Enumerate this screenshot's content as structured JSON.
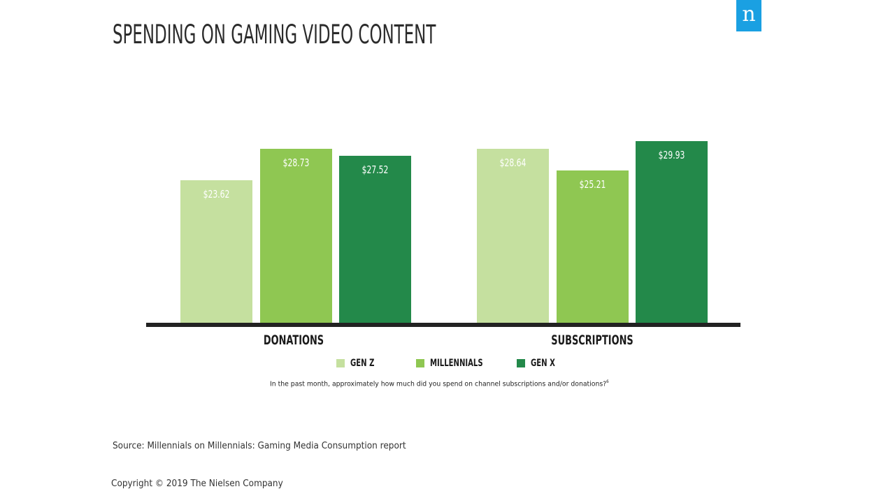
{
  "page": {
    "title": "SPENDING ON GAMING VIDEO CONTENT",
    "logo_letter": "n",
    "logo_color": "#1aa0e2",
    "question": "In the past month, approximately how much did you spend on channel subscriptions and/or donations?",
    "question_footnote": "6",
    "source": "Source: Millennials on Millennials: Gaming Media Consumption report",
    "copyright": "Copyright © 2019 The Nielsen Company"
  },
  "chart_data": {
    "type": "bar",
    "title": "SPENDING ON GAMING VIDEO CONTENT",
    "xlabel": "",
    "ylabel": "",
    "categories": [
      "DONATIONS",
      "SUBSCRIPTIONS"
    ],
    "series": [
      {
        "name": "GEN Z",
        "color": "#c5e09f",
        "values": [
          23.62,
          28.64
        ],
        "labels": [
          "$23.62",
          "$28.64"
        ]
      },
      {
        "name": "MILLENNIALS",
        "color": "#8fc752",
        "values": [
          28.73,
          25.21
        ],
        "labels": [
          "$28.73",
          "$25.21"
        ]
      },
      {
        "name": "GEN X",
        "color": "#23894a",
        "values": [
          27.52,
          29.93
        ],
        "labels": [
          "$27.52",
          "$29.93"
        ]
      }
    ],
    "legend_position": "bottom",
    "grid": false,
    "axis_line_color": "#222222"
  }
}
